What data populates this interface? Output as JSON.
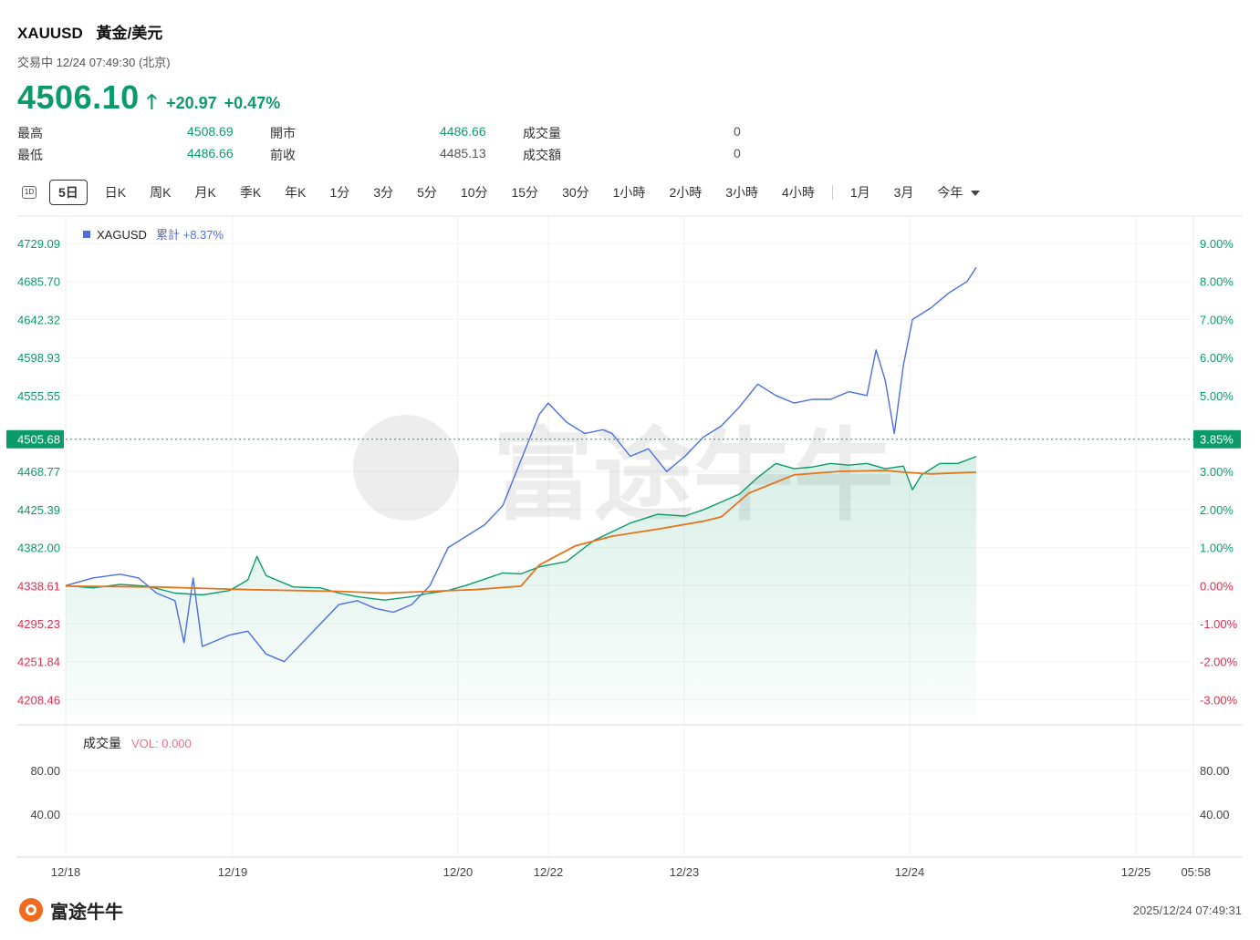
{
  "header": {
    "symbol": "XAUUSD",
    "name": "黃金/美元",
    "status": "交易中 12/24 07:49:30 (北京)",
    "price": "4506.10",
    "change": "+20.97",
    "change_pct": "+0.47%",
    "colors": {
      "up": "#0b9b6b",
      "down": "#e0304e"
    }
  },
  "stats": [
    {
      "label": "最高",
      "value": "4508.69",
      "tone": "green"
    },
    {
      "label": "開市",
      "value": "4486.66",
      "tone": "green"
    },
    {
      "label": "成交量",
      "value": "0",
      "tone": "gray"
    },
    {
      "label": "最低",
      "value": "4486.66",
      "tone": "green"
    },
    {
      "label": "前收",
      "value": "4485.13",
      "tone": "gray"
    },
    {
      "label": "成交額",
      "value": "0",
      "tone": "gray"
    }
  ],
  "toolbar": {
    "icon_label": "1D",
    "items": [
      "5日",
      "日K",
      "周K",
      "月K",
      "季K",
      "年K",
      "1分",
      "3分",
      "5分",
      "10分",
      "15分",
      "30分",
      "1小時",
      "2小時",
      "3小時",
      "4小時"
    ],
    "active": "5日",
    "range_items": [
      "1月",
      "3月",
      "今年"
    ]
  },
  "chart_data": {
    "type": "line",
    "x_labels": [
      "12/18",
      "12/19",
      "12/20",
      "12/22",
      "12/23",
      "12/24",
      "12/25",
      "05:58"
    ],
    "y_left_ticks": [
      "4729.09",
      "4685.70",
      "4642.32",
      "4598.93",
      "4555.55",
      "4468.77",
      "4425.39",
      "4382.00",
      "4338.61",
      "4295.23",
      "4251.84",
      "4208.46"
    ],
    "y_right_ticks": [
      "9.00%",
      "8.00%",
      "7.00%",
      "6.00%",
      "5.00%",
      "3.00%",
      "2.00%",
      "1.00%",
      "0.00%",
      "-1.00%",
      "-2.00%",
      "-3.00%"
    ],
    "ylim": [
      4208.46,
      4729.09
    ],
    "current_price_label": "4505.68",
    "current_pct_label": "3.85%",
    "legend": {
      "name": "XAGUSD",
      "text": "累計 +8.37%"
    },
    "series": [
      {
        "name": "XAUUSD",
        "color": "#0b9b6b",
        "unit": "price",
        "points": [
          [
            0,
            4338.6
          ],
          [
            0.03,
            4336
          ],
          [
            0.06,
            4340
          ],
          [
            0.09,
            4338
          ],
          [
            0.12,
            4330
          ],
          [
            0.15,
            4328
          ],
          [
            0.18,
            4333
          ],
          [
            0.2,
            4345
          ],
          [
            0.21,
            4372
          ],
          [
            0.22,
            4350
          ],
          [
            0.25,
            4337
          ],
          [
            0.28,
            4336
          ],
          [
            0.3,
            4330
          ],
          [
            0.32,
            4326
          ],
          [
            0.35,
            4322
          ],
          [
            0.38,
            4326
          ],
          [
            0.4,
            4330
          ],
          [
            0.42,
            4333
          ],
          [
            0.44,
            4339
          ],
          [
            0.46,
            4346
          ],
          [
            0.48,
            4353
          ],
          [
            0.5,
            4352
          ],
          [
            0.52,
            4360
          ],
          [
            0.55,
            4366
          ],
          [
            0.58,
            4390
          ],
          [
            0.6,
            4400
          ],
          [
            0.62,
            4410
          ],
          [
            0.65,
            4420
          ],
          [
            0.68,
            4418
          ],
          [
            0.7,
            4425
          ],
          [
            0.72,
            4434
          ],
          [
            0.74,
            4443
          ],
          [
            0.76,
            4462
          ],
          [
            0.78,
            4478
          ],
          [
            0.8,
            4472
          ],
          [
            0.82,
            4474
          ],
          [
            0.84,
            4478
          ],
          [
            0.86,
            4476
          ],
          [
            0.88,
            4478
          ],
          [
            0.9,
            4472
          ],
          [
            0.92,
            4475
          ],
          [
            0.93,
            4448
          ],
          [
            0.94,
            4465
          ],
          [
            0.96,
            4478
          ],
          [
            0.98,
            4478
          ],
          [
            1.0,
            4486
          ]
        ]
      },
      {
        "name": "XAGUSD",
        "color": "#4a6fe3",
        "unit": "percent",
        "points": [
          [
            0,
            0
          ],
          [
            0.03,
            0.2
          ],
          [
            0.06,
            0.3
          ],
          [
            0.08,
            0.2
          ],
          [
            0.1,
            -0.2
          ],
          [
            0.12,
            -0.4
          ],
          [
            0.13,
            -1.5
          ],
          [
            0.14,
            0.2
          ],
          [
            0.15,
            -1.6
          ],
          [
            0.18,
            -1.3
          ],
          [
            0.2,
            -1.2
          ],
          [
            0.22,
            -1.8
          ],
          [
            0.24,
            -2.0
          ],
          [
            0.26,
            -1.5
          ],
          [
            0.28,
            -1.0
          ],
          [
            0.3,
            -0.5
          ],
          [
            0.32,
            -0.4
          ],
          [
            0.34,
            -0.6
          ],
          [
            0.36,
            -0.7
          ],
          [
            0.38,
            -0.5
          ],
          [
            0.4,
            0.0
          ],
          [
            0.42,
            1.0
          ],
          [
            0.44,
            1.3
          ],
          [
            0.46,
            1.6
          ],
          [
            0.48,
            2.1
          ],
          [
            0.5,
            3.3
          ],
          [
            0.52,
            4.5
          ],
          [
            0.53,
            4.8
          ],
          [
            0.55,
            4.3
          ],
          [
            0.57,
            4.0
          ],
          [
            0.59,
            4.1
          ],
          [
            0.6,
            4.0
          ],
          [
            0.62,
            3.4
          ],
          [
            0.64,
            3.6
          ],
          [
            0.66,
            3.0
          ],
          [
            0.68,
            3.4
          ],
          [
            0.7,
            3.9
          ],
          [
            0.72,
            4.2
          ],
          [
            0.74,
            4.7
          ],
          [
            0.76,
            5.3
          ],
          [
            0.78,
            5.0
          ],
          [
            0.8,
            4.8
          ],
          [
            0.82,
            4.9
          ],
          [
            0.84,
            4.9
          ],
          [
            0.86,
            5.1
          ],
          [
            0.88,
            5.0
          ],
          [
            0.89,
            6.2
          ],
          [
            0.9,
            5.4
          ],
          [
            0.91,
            4.0
          ],
          [
            0.92,
            5.8
          ],
          [
            0.93,
            7.0
          ],
          [
            0.95,
            7.3
          ],
          [
            0.97,
            7.7
          ],
          [
            0.99,
            8.0
          ],
          [
            1.0,
            8.37
          ]
        ]
      },
      {
        "name": "MA",
        "color": "#e3751b",
        "unit": "price",
        "points": [
          [
            0,
            4338
          ],
          [
            0.1,
            4337
          ],
          [
            0.2,
            4334
          ],
          [
            0.3,
            4332
          ],
          [
            0.35,
            4330
          ],
          [
            0.4,
            4332
          ],
          [
            0.45,
            4334
          ],
          [
            0.5,
            4338
          ],
          [
            0.52,
            4362
          ],
          [
            0.56,
            4384
          ],
          [
            0.6,
            4395
          ],
          [
            0.65,
            4403
          ],
          [
            0.7,
            4412
          ],
          [
            0.72,
            4417
          ],
          [
            0.75,
            4444
          ],
          [
            0.8,
            4465
          ],
          [
            0.85,
            4469
          ],
          [
            0.9,
            4470
          ],
          [
            0.92,
            4468
          ],
          [
            0.95,
            4466
          ],
          [
            1.0,
            4468
          ]
        ]
      }
    ],
    "volume": {
      "label": "成交量",
      "vol_text": "VOL: 0.000",
      "ticks": [
        "80.00",
        "40.00"
      ]
    }
  },
  "footer": {
    "brand": "富途牛牛",
    "timestamp": "2025/12/24 07:49:31"
  }
}
